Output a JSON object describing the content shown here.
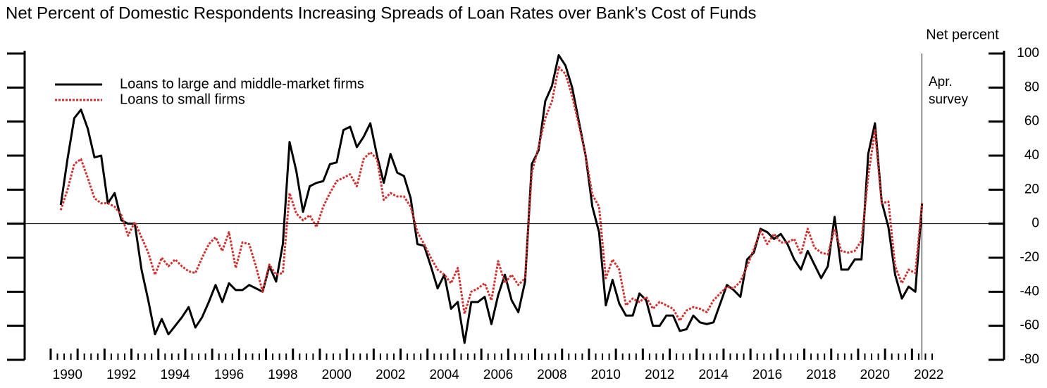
{
  "chart_data": {
    "type": "line",
    "title": "Net Percent of Domestic Respondents Increasing Spreads of Loan Rates over Bank’s Cost of Funds",
    "y_axis_label": "Net percent",
    "annotation": [
      "Apr.",
      "survey"
    ],
    "legend": "upper left",
    "categories": [
      null,
      "1990",
      null,
      null,
      null,
      null,
      null,
      null,
      null,
      "1992",
      null,
      null,
      null,
      null,
      null,
      null,
      null,
      "1994",
      null,
      null,
      null,
      null,
      null,
      null,
      null,
      "1996",
      null,
      null,
      null,
      null,
      null,
      null,
      null,
      "1998",
      null,
      null,
      null,
      null,
      null,
      null,
      null,
      "2000",
      null,
      null,
      null,
      null,
      null,
      null,
      null,
      "2002",
      null,
      null,
      null,
      null,
      null,
      null,
      null,
      "2004",
      null,
      null,
      null,
      null,
      null,
      null,
      null,
      "2006",
      null,
      null,
      null,
      null,
      null,
      null,
      null,
      "2008",
      null,
      null,
      null,
      null,
      null,
      null,
      null,
      "2010",
      null,
      null,
      null,
      null,
      null,
      null,
      null,
      "2012",
      null,
      null,
      null,
      null,
      null,
      null,
      null,
      "2014",
      null,
      null,
      null,
      null,
      null,
      null,
      null,
      "2016",
      null,
      null,
      null,
      null,
      null,
      null,
      null,
      "2018",
      null,
      null,
      null,
      null,
      null,
      null,
      null,
      "2020",
      null,
      null,
      null,
      null,
      null,
      null,
      null,
      "2022"
    ],
    "series": [
      {
        "name": "Loans to large and middle-market firms",
        "color": "#000000",
        "dash": false,
        "values": [
          11,
          38,
          62,
          67,
          56,
          39,
          40,
          12,
          18,
          2,
          0,
          0,
          -27,
          -45,
          -65,
          -56,
          -65,
          -60,
          -55,
          -49,
          -61,
          -55,
          -46,
          -36,
          -46,
          -35,
          -39,
          -39,
          -36,
          -38,
          -40,
          -25,
          -34,
          -12,
          48,
          31,
          7,
          22,
          24,
          25,
          35,
          36,
          55,
          57,
          45,
          51,
          59,
          40,
          24,
          41,
          30,
          28,
          15,
          -12,
          -13,
          -25,
          -38,
          -30,
          -50,
          -46,
          -70,
          -46,
          -46,
          -43,
          -59,
          -42,
          -30,
          -45,
          -52,
          -34,
          35,
          43,
          72,
          81,
          99,
          93,
          80,
          60,
          40,
          10,
          -5,
          -48,
          -33,
          -47,
          -54,
          -54,
          -41,
          -45,
          -60,
          -60,
          -54,
          -54,
          -63,
          -62,
          -54,
          -58,
          -59,
          -58,
          -47,
          -36,
          -39,
          -43,
          -21,
          -17,
          -3,
          -5,
          -9,
          -6,
          -12,
          -21,
          -27,
          -16,
          -24,
          -32,
          -25,
          4,
          -27,
          -27,
          -21,
          -21,
          41,
          59,
          13,
          -2,
          -30,
          -44,
          -37,
          -40,
          12,
          null
        ]
      },
      {
        "name": "Loans to small firms",
        "color": "#d03030",
        "dash": true,
        "values": [
          8,
          20,
          35,
          38,
          27,
          15,
          12,
          12,
          10,
          5,
          -7,
          1,
          -8,
          -17,
          -30,
          -20,
          -25,
          -21,
          -25,
          -28,
          -29,
          -20,
          -12,
          -8,
          -16,
          -5,
          -26,
          -11,
          -12,
          -25,
          -40,
          -24,
          -30,
          -29,
          18,
          6,
          2,
          5,
          -2,
          10,
          18,
          25,
          27,
          29,
          22,
          38,
          42,
          38,
          14,
          18,
          16,
          16,
          10,
          -5,
          -12,
          -20,
          -27,
          -30,
          -35,
          -26,
          -53,
          -40,
          -38,
          -35,
          -45,
          -22,
          -35,
          -30,
          -36,
          -32,
          30,
          45,
          62,
          72,
          92,
          88,
          75,
          58,
          40,
          17,
          10,
          -32,
          -21,
          -27,
          -48,
          -44,
          -46,
          -43,
          -50,
          -46,
          -48,
          -50,
          -57,
          -51,
          -49,
          -50,
          -52,
          -45,
          -41,
          -37,
          -38,
          -34,
          -25,
          -15,
          -4,
          -12,
          -6,
          -11,
          -11,
          -9,
          -18,
          -3,
          -14,
          -17,
          -18,
          -3,
          -16,
          -17,
          -16,
          -10,
          28,
          55,
          12,
          13,
          -25,
          -35,
          -27,
          -29,
          12,
          null
        ]
      }
    ],
    "ylim": [
      -80,
      100
    ],
    "yticks": [
      -80,
      -60,
      -40,
      -20,
      0,
      20,
      40,
      60,
      80,
      100
    ]
  }
}
